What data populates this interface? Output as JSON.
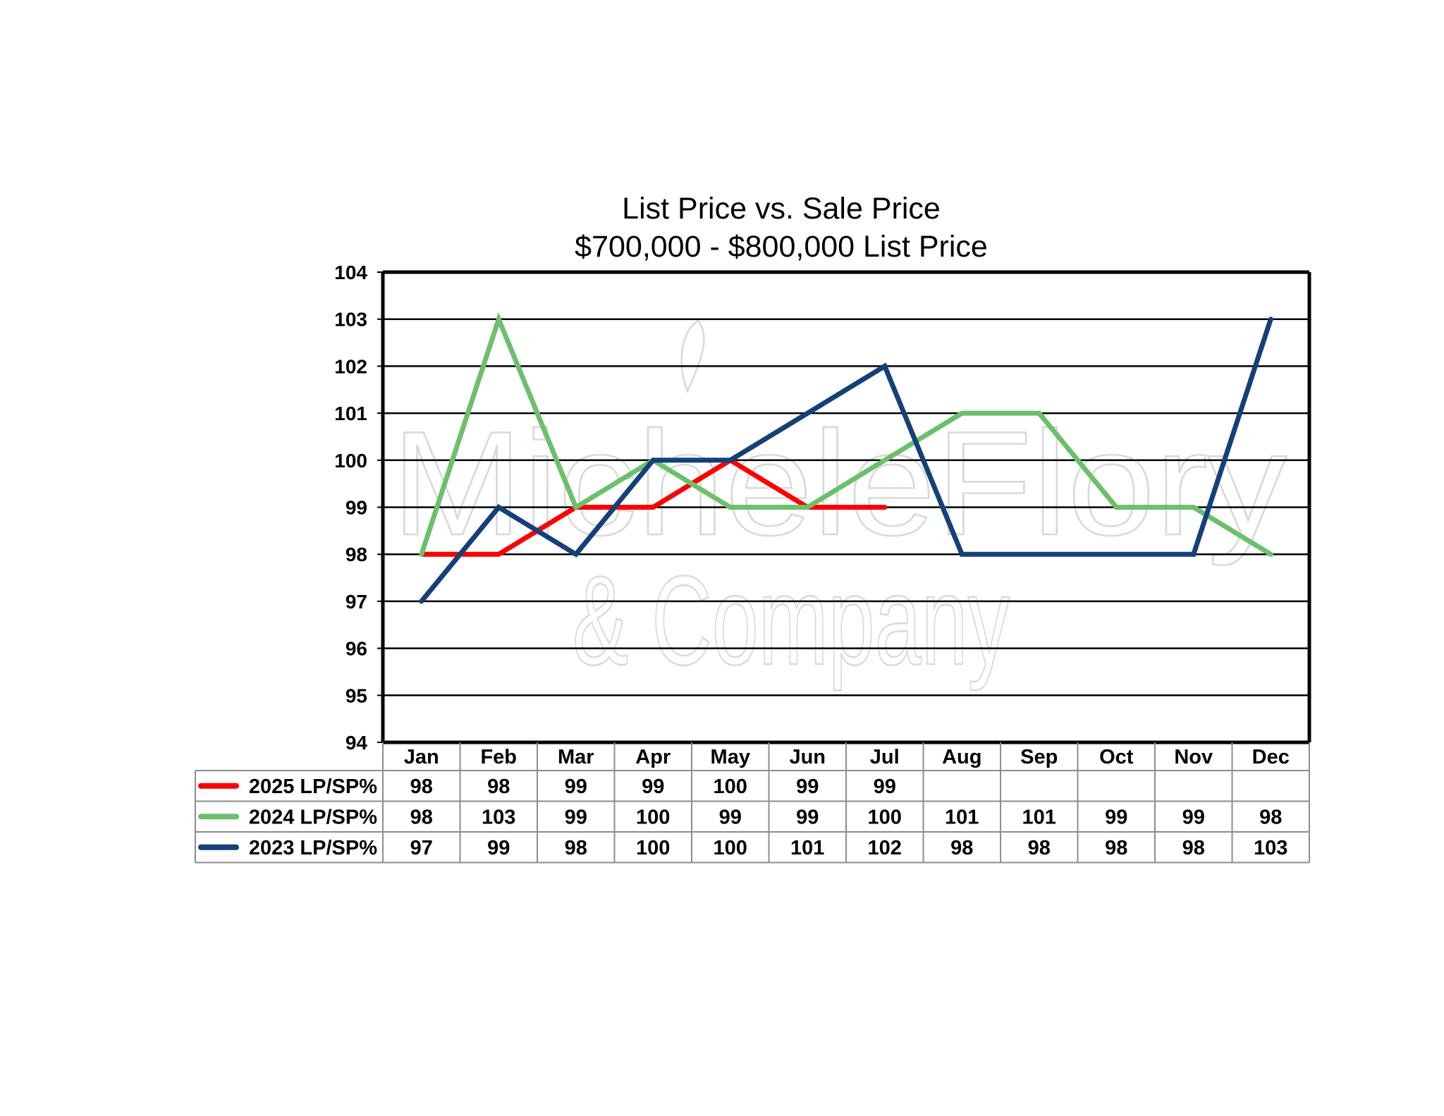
{
  "chart_data": {
    "type": "line",
    "title": "List Price vs. Sale Price",
    "subtitle": "$700,000 - $800,000 List Price",
    "categories": [
      "Jan",
      "Feb",
      "Mar",
      "Apr",
      "May",
      "Jun",
      "Jul",
      "Aug",
      "Sep",
      "Oct",
      "Nov",
      "Dec"
    ],
    "ylim": [
      94,
      104
    ],
    "yticks": [
      94,
      95,
      96,
      97,
      98,
      99,
      100,
      101,
      102,
      103,
      104
    ],
    "grid": true,
    "legend": "data-table",
    "series": [
      {
        "name": "2025 LP/SP%",
        "color": "#ff0000",
        "values": [
          98,
          98,
          99,
          99,
          100,
          99,
          99,
          null,
          null,
          null,
          null,
          null
        ]
      },
      {
        "name": "2024 LP/SP%",
        "color": "#6cc06c",
        "values": [
          98,
          103,
          99,
          100,
          99,
          99,
          100,
          101,
          101,
          99,
          99,
          98
        ]
      },
      {
        "name": "2023 LP/SP%",
        "color": "#14407a",
        "values": [
          97,
          99,
          98,
          100,
          100,
          101,
          102,
          98,
          98,
          98,
          98,
          103
        ]
      }
    ]
  },
  "watermark": {
    "line1": "MicheleFlory",
    "line2": "& Company"
  }
}
